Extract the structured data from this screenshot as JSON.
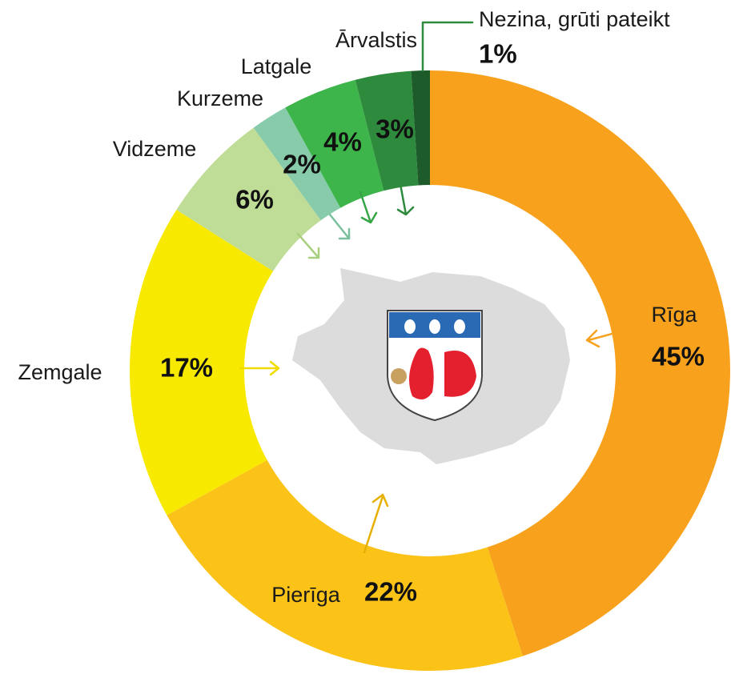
{
  "chart_data": {
    "type": "pie",
    "donut": true,
    "categories": [
      "Rīga",
      "Pierīga",
      "Zemgale",
      "Vidzeme",
      "Kurzeme",
      "Latgale",
      "Ārvalstis",
      "Nezina, grūti pateikt"
    ],
    "values": [
      45,
      22,
      17,
      6,
      2,
      4,
      3,
      1
    ],
    "value_labels": [
      "45%",
      "22%",
      "17%",
      "6%",
      "2%",
      "4%",
      "3%",
      "1%"
    ],
    "colors": [
      "#f8a11c",
      "#fbc218",
      "#f8e900",
      "#c0dd97",
      "#88cbab",
      "#3db54b",
      "#2e8a3c",
      "#1d5b2b"
    ]
  }
}
